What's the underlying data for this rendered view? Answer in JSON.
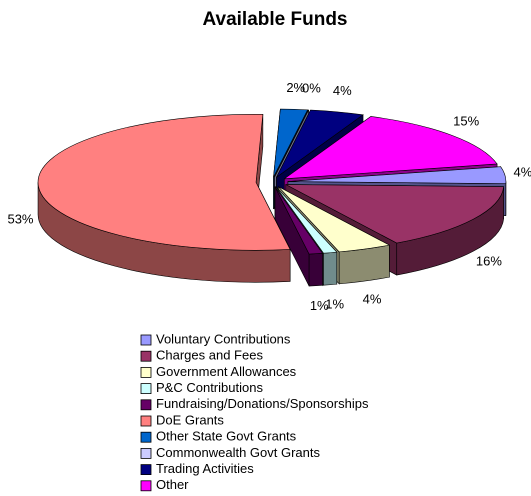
{
  "chart_data": {
    "type": "pie3d",
    "title": "Available Funds",
    "categories": [
      "Voluntary Contributions",
      "Charges and Fees",
      "Government Allowances",
      "P&C Contributions",
      "Fundraising/Donations/Sponsorships",
      "DoE Grants",
      "Other State Govt Grants",
      "Commonwealth Govt Grants",
      "Trading Activities",
      "Other"
    ],
    "values": [
      4,
      16,
      4,
      1,
      1,
      53,
      2,
      0,
      4,
      15
    ],
    "value_labels": [
      "4%",
      "16%",
      "4%",
      "1%",
      "1%",
      "53%",
      "2%",
      "0%",
      "4%",
      "15%"
    ],
    "colors": [
      "#9999ff",
      "#993366",
      "#ffffcc",
      "#ccffff",
      "#660066",
      "#ff8080",
      "#0066cc",
      "#ccccff",
      "#000080",
      "#ff00ff"
    ],
    "legend": "bottom"
  }
}
